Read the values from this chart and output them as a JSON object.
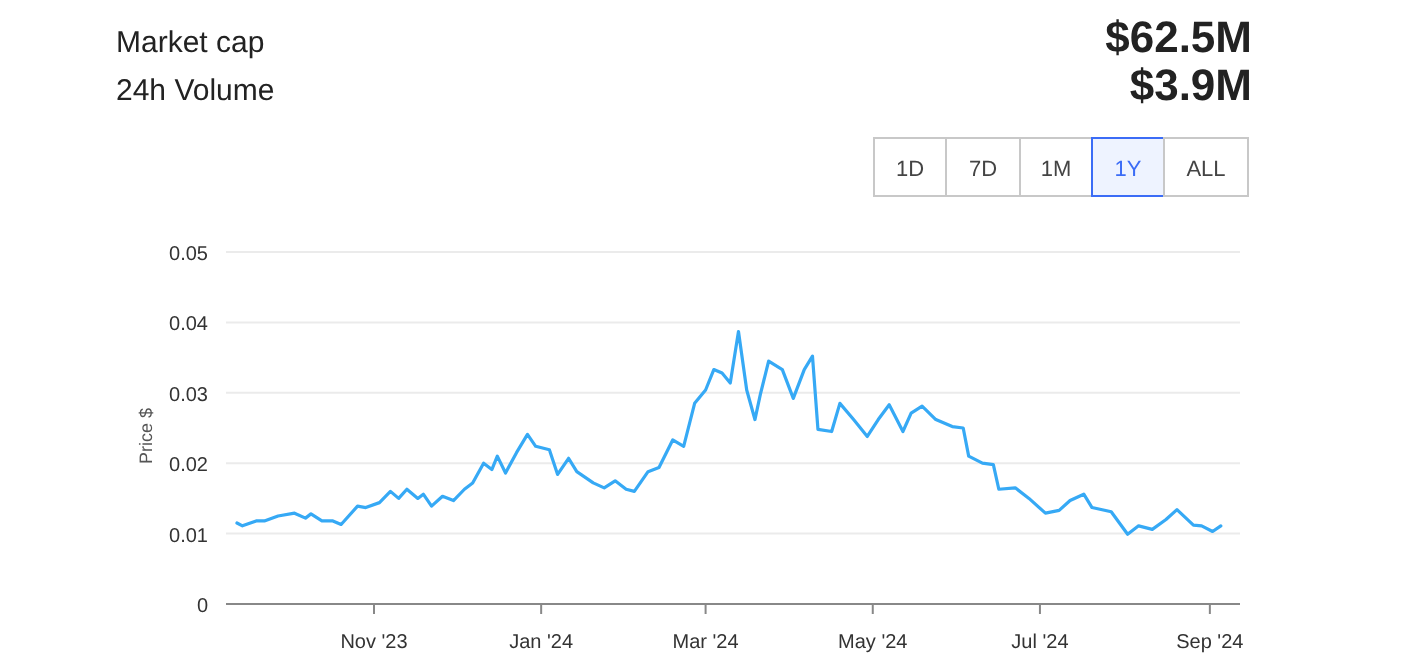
{
  "chart_data": {
    "type": "line",
    "ylabel": "Price $",
    "annotations": [
      "Market cap",
      "$62.5M",
      "24h Volume",
      "$3.9M",
      "1D",
      "7D",
      "1M",
      "1Y",
      "ALL"
    ],
    "x": [
      "2023-09-12",
      "2023-09-14",
      "2023-09-19",
      "2023-09-22",
      "2023-09-27",
      "2023-10-03",
      "2023-10-07",
      "2023-10-09",
      "2023-10-13",
      "2023-10-17",
      "2023-10-20",
      "2023-10-26",
      "2023-10-29",
      "2023-11-03",
      "2023-11-07",
      "2023-11-10",
      "2023-11-13",
      "2023-11-17",
      "2023-11-19",
      "2023-11-22",
      "2023-11-26",
      "2023-11-30",
      "2023-12-04",
      "2023-12-07",
      "2023-12-11",
      "2023-12-14",
      "2023-12-16",
      "2023-12-19",
      "2023-12-23",
      "2023-12-27",
      "2023-12-30",
      "2024-01-04",
      "2024-01-07",
      "2024-01-11",
      "2024-01-14",
      "2024-01-20",
      "2024-01-24",
      "2024-01-28",
      "2024-02-01",
      "2024-02-04",
      "2024-02-09",
      "2024-02-13",
      "2024-02-18",
      "2024-02-22",
      "2024-02-26",
      "2024-03-01",
      "2024-03-04",
      "2024-03-07",
      "2024-03-10",
      "2024-03-13",
      "2024-03-16",
      "2024-03-19",
      "2024-03-21",
      "2024-03-24",
      "2024-03-29",
      "2024-04-02",
      "2024-04-06",
      "2024-04-09",
      "2024-04-11",
      "2024-04-16",
      "2024-04-19",
      "2024-04-24",
      "2024-04-29",
      "2024-05-03",
      "2024-05-07",
      "2024-05-12",
      "2024-05-15",
      "2024-05-19",
      "2024-05-24",
      "2024-05-30",
      "2024-06-03",
      "2024-06-05",
      "2024-06-10",
      "2024-06-14",
      "2024-06-16",
      "2024-06-22",
      "2024-06-27",
      "2024-07-03",
      "2024-07-08",
      "2024-07-12",
      "2024-07-17",
      "2024-07-20",
      "2024-07-27",
      "2024-08-02",
      "2024-08-06",
      "2024-08-11",
      "2024-08-16",
      "2024-08-20",
      "2024-08-26",
      "2024-08-29",
      "2024-09-02",
      "2024-09-05"
    ],
    "series": [
      {
        "color": "#36a9f5",
        "values": [
          0.0115,
          0.0111,
          0.0118,
          0.0118,
          0.0125,
          0.0129,
          0.0122,
          0.0128,
          0.0118,
          0.0118,
          0.0113,
          0.0139,
          0.0137,
          0.0144,
          0.016,
          0.015,
          0.0163,
          0.015,
          0.0156,
          0.0139,
          0.0153,
          0.0147,
          0.0163,
          0.0172,
          0.02,
          0.0191,
          0.021,
          0.0186,
          0.0215,
          0.0241,
          0.0224,
          0.0219,
          0.0184,
          0.0207,
          0.0188,
          0.0172,
          0.0165,
          0.0175,
          0.0163,
          0.016,
          0.0188,
          0.0194,
          0.0233,
          0.0224,
          0.0285,
          0.0304,
          0.0333,
          0.0328,
          0.0314,
          0.0387,
          0.0304,
          0.0262,
          0.0298,
          0.0345,
          0.0333,
          0.0292,
          0.0333,
          0.0352,
          0.0248,
          0.0245,
          0.0285,
          0.0262,
          0.0238,
          0.0262,
          0.0283,
          0.0245,
          0.0271,
          0.0281,
          0.0262,
          0.0252,
          0.025,
          0.021,
          0.02,
          0.0198,
          0.0163,
          0.0165,
          0.015,
          0.0129,
          0.0133,
          0.0147,
          0.0156,
          0.0137,
          0.0131,
          0.0099,
          0.0111,
          0.0106,
          0.012,
          0.0134,
          0.0112,
          0.0111,
          0.0103,
          0.0111
        ]
      }
    ],
    "xlim": [
      "2023-09-08",
      "2024-09-12"
    ],
    "xticks": [
      {
        "value": "2023-11-01",
        "label": "Nov '23"
      },
      {
        "value": "2024-01-01",
        "label": "Jan '24"
      },
      {
        "value": "2024-03-01",
        "label": "Mar '24"
      },
      {
        "value": "2024-05-01",
        "label": "May '24"
      },
      {
        "value": "2024-07-01",
        "label": "Jul '24"
      },
      {
        "value": "2024-09-01",
        "label": "Sep '24"
      }
    ],
    "ylim": [
      0,
      0.05
    ],
    "yticks": [
      0,
      0.01,
      0.02,
      0.03,
      0.04,
      0.05
    ],
    "grid": "y",
    "line_style": "solid",
    "marker": "none"
  }
}
